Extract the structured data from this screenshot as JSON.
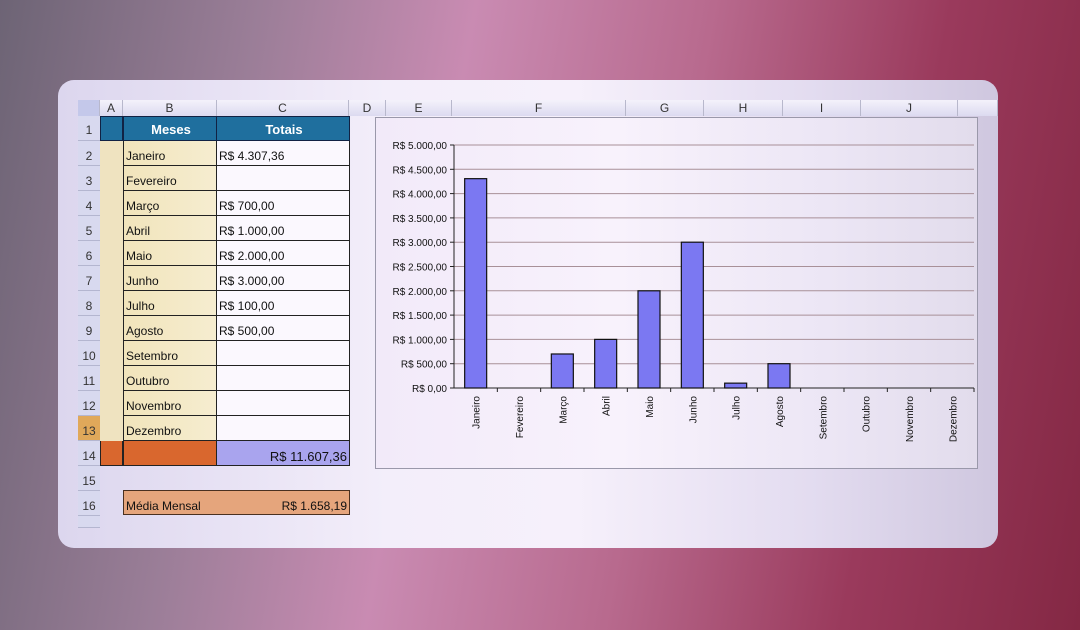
{
  "columns": [
    "A",
    "B",
    "C",
    "D",
    "E",
    "F",
    "G",
    "H",
    "I",
    "J"
  ],
  "rows": [
    "1",
    "2",
    "3",
    "4",
    "5",
    "6",
    "7",
    "8",
    "9",
    "10",
    "11",
    "12",
    "13",
    "14",
    "15",
    "16"
  ],
  "table": {
    "headers": [
      "Meses",
      "Totais"
    ],
    "entries": [
      {
        "month": "Janeiro",
        "total": "R$ 4.307,36"
      },
      {
        "month": "Fevereiro",
        "total": ""
      },
      {
        "month": "Março",
        "total": "R$ 700,00"
      },
      {
        "month": "Abril",
        "total": "R$ 1.000,00"
      },
      {
        "month": "Maio",
        "total": "R$ 2.000,00"
      },
      {
        "month": "Junho",
        "total": "R$ 3.000,00"
      },
      {
        "month": "Julho",
        "total": "R$ 100,00"
      },
      {
        "month": "Agosto",
        "total": "R$ 500,00"
      },
      {
        "month": "Setembro",
        "total": ""
      },
      {
        "month": "Outubro",
        "total": ""
      },
      {
        "month": "Novembro",
        "total": ""
      },
      {
        "month": "Dezembro",
        "total": ""
      }
    ],
    "sum": "R$ 11.607,36",
    "average_label": "Média Mensal",
    "average_value": "R$ 1.658,19"
  },
  "selected_row": "13",
  "colors": {
    "header": "#1f6f9e",
    "bar": "#7b78f2",
    "sum_cell": "#a9a4ee",
    "sum_left": "#d9672e",
    "average": "#e5a57c"
  },
  "chart_data": {
    "type": "bar",
    "categories": [
      "Janeiro",
      "Fevereiro",
      "Março",
      "Abril",
      "Maio",
      "Junho",
      "Julho",
      "Agosto",
      "Setembro",
      "Outubro",
      "Novembro",
      "Dezembro"
    ],
    "values": [
      4307.36,
      0,
      700,
      1000,
      2000,
      3000,
      100,
      500,
      0,
      0,
      0,
      0
    ],
    "ylim": [
      0,
      5000
    ],
    "yticks": [
      "R$ 0,00",
      "R$ 500,00",
      "R$ 1.000,00",
      "R$ 1.500,00",
      "R$ 2.000,00",
      "R$ 2.500,00",
      "R$ 3.000,00",
      "R$ 3.500,00",
      "R$ 4.000,00",
      "R$ 4.500,00",
      "R$ 5.000,00"
    ],
    "grid": true,
    "legend": "none"
  }
}
